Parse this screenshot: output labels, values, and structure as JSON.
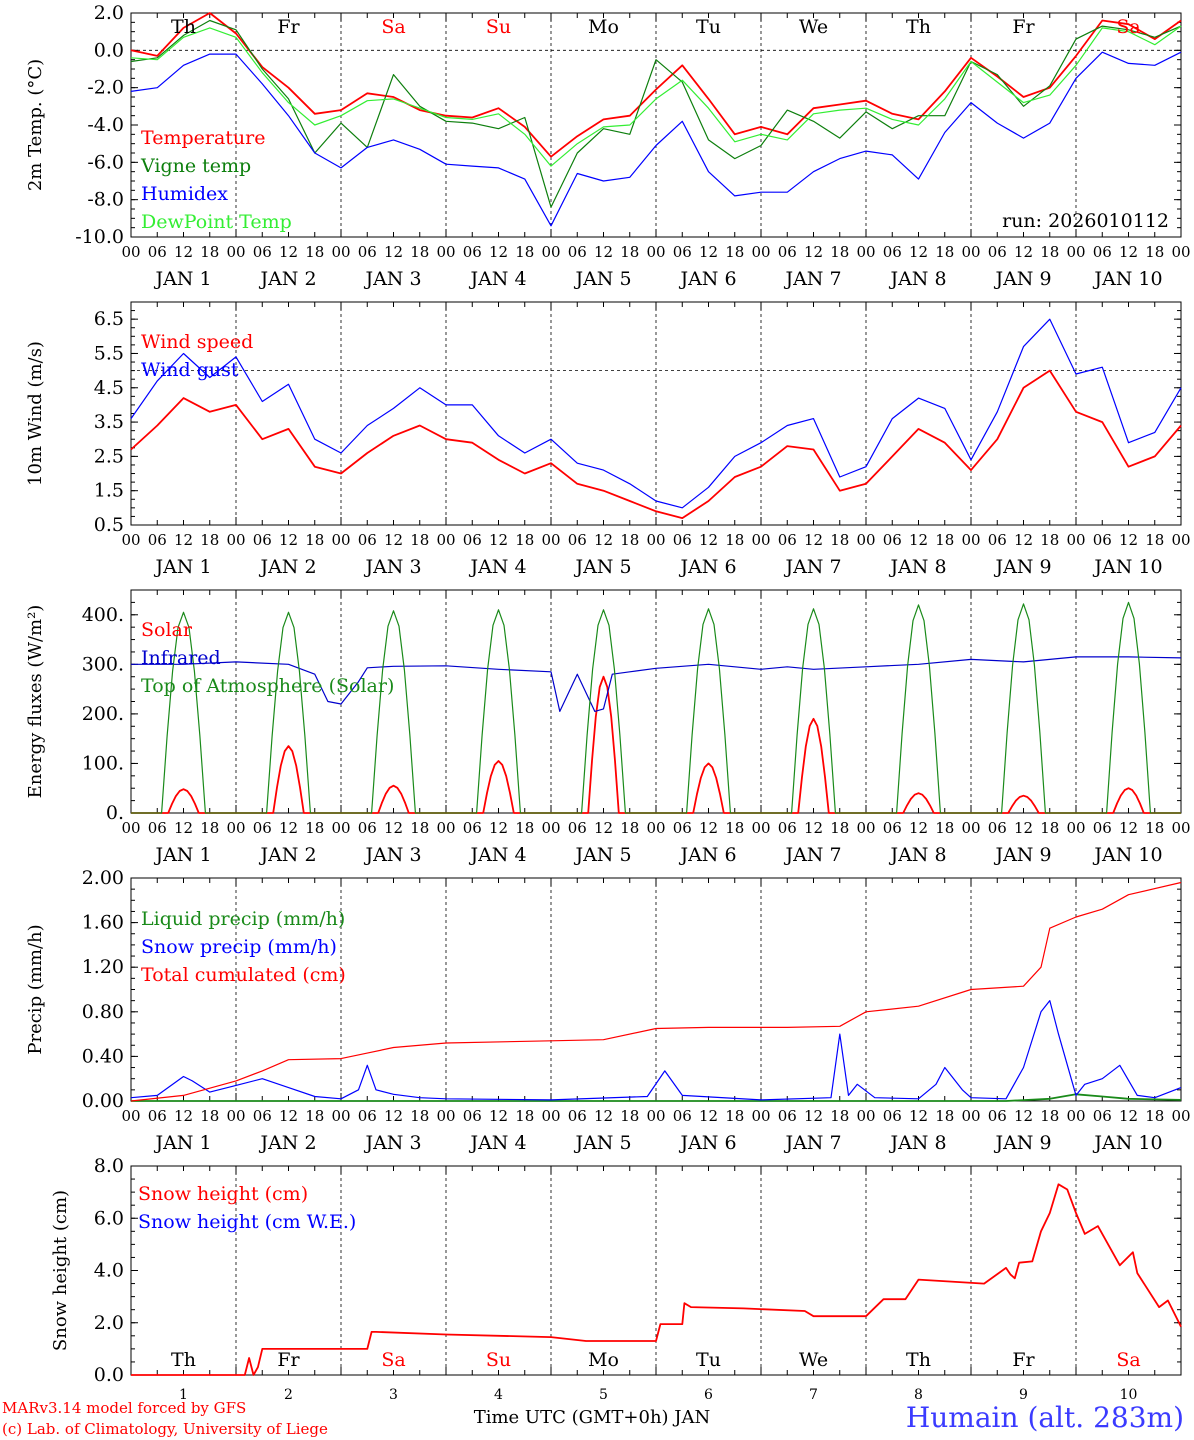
{
  "chart_data": [
    {
      "type": "line",
      "ylabel": "2m Temp. (°C)",
      "ylim": [
        -10,
        2
      ],
      "yticks": [
        "2.0",
        "0.0",
        "-2.0",
        "-4.0",
        "-6.0",
        "-8.0",
        "-10.0"
      ],
      "refline": 0,
      "day_names": [
        "Th",
        "Fr",
        "Sa",
        "Su",
        "Mo",
        "Tu",
        "We",
        "Th",
        "Fr",
        "Sa"
      ],
      "run_label": "run: 2026010112",
      "series": [
        {
          "name": "Temperature",
          "color": "#ff0000",
          "x": [
            0,
            6,
            12,
            18,
            24,
            30,
            36,
            42,
            48,
            54,
            60,
            66,
            72,
            78,
            84,
            90,
            96,
            102,
            108,
            114,
            120,
            126,
            132,
            138,
            144,
            150,
            156,
            162,
            168,
            174,
            180,
            186,
            192,
            198,
            204,
            210,
            216,
            222,
            228,
            234,
            240
          ],
          "values": [
            0,
            -0.3,
            1.2,
            2.0,
            0.9,
            -0.9,
            -2.0,
            -3.4,
            -3.2,
            -2.3,
            -2.5,
            -3.2,
            -3.5,
            -3.6,
            -3.1,
            -4.1,
            -5.7,
            -4.6,
            -3.7,
            -3.5,
            -2.1,
            -0.8,
            -2.6,
            -4.5,
            -4.1,
            -4.5,
            -3.1,
            -2.9,
            -2.7,
            -3.4,
            -3.7,
            -2.2,
            -0.4,
            -1.4,
            -2.5,
            -2.0,
            -0.3,
            1.6,
            1.4,
            0.6,
            1.6
          ]
        },
        {
          "name": "Vigne temp",
          "color": "#0d7f0d",
          "x": [
            0,
            6,
            12,
            18,
            24,
            30,
            36,
            42,
            48,
            54,
            60,
            66,
            72,
            78,
            84,
            90,
            96,
            102,
            108,
            114,
            120,
            126,
            132,
            138,
            144,
            150,
            156,
            162,
            168,
            174,
            180,
            186,
            192,
            198,
            204,
            210,
            216,
            222,
            228,
            234,
            240
          ],
          "values": [
            -0.6,
            -0.4,
            0.8,
            1.6,
            1.1,
            -1.0,
            -2.6,
            -5.5,
            -3.9,
            -5.2,
            -1.3,
            -3.0,
            -3.8,
            -3.9,
            -4.2,
            -3.6,
            -8.4,
            -5.5,
            -4.2,
            -4.5,
            -0.5,
            -1.7,
            -4.8,
            -5.8,
            -5.1,
            -3.2,
            -3.8,
            -4.7,
            -3.3,
            -4.2,
            -3.5,
            -3.5,
            -0.6,
            -1.3,
            -3.0,
            -1.9,
            0.6,
            1.3,
            1.1,
            0.7,
            1.3
          ]
        },
        {
          "name": "Humidex",
          "color": "#0000ff",
          "x": [
            0,
            6,
            12,
            18,
            24,
            30,
            36,
            42,
            48,
            54,
            60,
            66,
            72,
            78,
            84,
            90,
            96,
            102,
            108,
            114,
            120,
            126,
            132,
            138,
            144,
            150,
            156,
            162,
            168,
            174,
            180,
            186,
            192,
            198,
            204,
            210,
            216,
            222,
            228,
            234,
            240
          ],
          "values": [
            -2.2,
            -2.0,
            -0.8,
            -0.2,
            -0.2,
            -1.8,
            -3.5,
            -5.5,
            -6.3,
            -5.2,
            -4.8,
            -5.3,
            -6.1,
            -6.2,
            -6.3,
            -6.9,
            -9.4,
            -6.6,
            -7.0,
            -6.8,
            -5.1,
            -3.8,
            -6.5,
            -7.8,
            -7.6,
            -7.6,
            -6.5,
            -5.8,
            -5.4,
            -5.6,
            -6.9,
            -4.4,
            -2.8,
            -3.9,
            -4.7,
            -3.9,
            -1.5,
            -0.1,
            -0.7,
            -0.8,
            -0.1
          ]
        },
        {
          "name": "DewPoint Temp",
          "color": "#33ee33",
          "x": [
            0,
            6,
            12,
            18,
            24,
            30,
            36,
            42,
            48,
            54,
            60,
            66,
            72,
            78,
            84,
            90,
            96,
            102,
            108,
            114,
            120,
            126,
            132,
            138,
            144,
            150,
            156,
            162,
            168,
            174,
            180,
            186,
            192,
            198,
            204,
            210,
            216,
            222,
            228,
            234,
            240
          ],
          "values": [
            -0.4,
            -0.5,
            0.7,
            1.2,
            0.7,
            -1.2,
            -2.8,
            -4.0,
            -3.5,
            -2.7,
            -2.6,
            -3.1,
            -3.6,
            -3.7,
            -3.4,
            -4.5,
            -6.2,
            -5.0,
            -4.1,
            -4.0,
            -2.6,
            -1.6,
            -3.1,
            -4.9,
            -4.5,
            -4.8,
            -3.4,
            -3.2,
            -3.1,
            -3.7,
            -4.0,
            -2.6,
            -0.6,
            -1.7,
            -2.8,
            -2.4,
            -0.8,
            1.2,
            1.0,
            0.3,
            1.3
          ]
        }
      ]
    },
    {
      "type": "line",
      "ylabel": "10m Wind (m/s)",
      "ylim": [
        0.5,
        7.0
      ],
      "yticks": [
        "6.5",
        "5.5",
        "4.5",
        "3.5",
        "2.5",
        "1.5",
        "0.5"
      ],
      "refline": 5,
      "series": [
        {
          "name": "Wind speed",
          "color": "#ff0000",
          "x": [
            0,
            6,
            12,
            18,
            24,
            30,
            36,
            42,
            48,
            54,
            60,
            66,
            72,
            78,
            84,
            90,
            96,
            102,
            108,
            114,
            120,
            126,
            132,
            138,
            144,
            150,
            156,
            162,
            168,
            174,
            180,
            186,
            192,
            198,
            204,
            210,
            216,
            222,
            228,
            234,
            240
          ],
          "values": [
            2.7,
            3.4,
            4.2,
            3.8,
            4.0,
            3.0,
            3.3,
            2.2,
            2.0,
            2.6,
            3.1,
            3.4,
            3.0,
            2.9,
            2.4,
            2.0,
            2.3,
            1.7,
            1.5,
            1.2,
            0.9,
            0.7,
            1.2,
            1.9,
            2.2,
            2.8,
            2.7,
            1.5,
            1.7,
            2.5,
            3.3,
            2.9,
            2.1,
            3.0,
            4.5,
            5.0,
            3.8,
            3.5,
            2.2,
            2.5,
            3.4
          ]
        },
        {
          "name": "Wind gust",
          "color": "#0000ff",
          "x": [
            0,
            6,
            12,
            18,
            24,
            30,
            36,
            42,
            48,
            54,
            60,
            66,
            72,
            78,
            84,
            90,
            96,
            102,
            108,
            114,
            120,
            126,
            132,
            138,
            144,
            150,
            156,
            162,
            168,
            174,
            180,
            186,
            192,
            198,
            204,
            210,
            216,
            222,
            228,
            234,
            240
          ],
          "values": [
            3.6,
            4.7,
            5.5,
            4.8,
            5.4,
            4.1,
            4.6,
            3.0,
            2.6,
            3.4,
            3.9,
            4.5,
            4.0,
            4.0,
            3.1,
            2.6,
            3.0,
            2.3,
            2.1,
            1.7,
            1.2,
            1.0,
            1.6,
            2.5,
            2.9,
            3.4,
            3.6,
            1.9,
            2.2,
            3.6,
            4.2,
            3.9,
            2.4,
            3.8,
            5.7,
            6.5,
            4.9,
            5.1,
            2.9,
            3.2,
            4.5
          ]
        }
      ]
    },
    {
      "type": "line",
      "ylabel": "Energy fluxes (W/m²)",
      "ylim": [
        0,
        450
      ],
      "yticks": [
        "400.",
        "300.",
        "200.",
        "100.",
        "0."
      ],
      "series": [
        {
          "name": "Solar",
          "color": "#ff0000",
          "daily_peaks": [
            48,
            135,
            55,
            105,
            275,
            100,
            190,
            40,
            35,
            50
          ]
        },
        {
          "name": "Infrared",
          "color": "#0000cc",
          "x": [
            0,
            12,
            24,
            36,
            42,
            45,
            48,
            52,
            54,
            60,
            72,
            84,
            96,
            98,
            102,
            106,
            108,
            110,
            114,
            120,
            132,
            144,
            150,
            156,
            168,
            180,
            192,
            204,
            216,
            228,
            240
          ],
          "values": [
            300,
            300,
            305,
            300,
            280,
            225,
            220,
            265,
            293,
            296,
            297,
            290,
            285,
            205,
            280,
            205,
            210,
            280,
            285,
            292,
            300,
            290,
            295,
            290,
            295,
            300,
            310,
            305,
            315,
            315,
            313
          ]
        },
        {
          "name": "Top of Atmosphere (Solar)",
          "color": "#1a8a1a",
          "daily_peaks": [
            405,
            405,
            408,
            410,
            410,
            412,
            412,
            420,
            422,
            425
          ]
        }
      ]
    },
    {
      "type": "line",
      "ylabel": "Precip (mm/h)",
      "ylim": [
        0,
        2.0
      ],
      "yticks": [
        "2.00",
        "1.60",
        "1.20",
        "0.80",
        "0.40",
        "0.00"
      ],
      "series": [
        {
          "name": "Liquid precip (mm/h)",
          "color": "#1a8a1a",
          "x": [
            0,
            48,
            96,
            144,
            200,
            210,
            216,
            222,
            228,
            240
          ],
          "values": [
            0,
            0,
            0,
            0,
            0,
            0.02,
            0.06,
            0.04,
            0.02,
            0.01
          ]
        },
        {
          "name": "Snow precip (mm/h)",
          "color": "#0000ff",
          "x": [
            0,
            6,
            12,
            14,
            18,
            24,
            30,
            36,
            42,
            48,
            52,
            54,
            56,
            60,
            66,
            72,
            96,
            118,
            122,
            126,
            144,
            160,
            162,
            164,
            166,
            170,
            180,
            184,
            186,
            190,
            192,
            200,
            204,
            208,
            210,
            212,
            216,
            218,
            222,
            226,
            230,
            234,
            240
          ],
          "values": [
            0.03,
            0.05,
            0.22,
            0.18,
            0.08,
            0.14,
            0.2,
            0.12,
            0.04,
            0.02,
            0.1,
            0.32,
            0.1,
            0.06,
            0.03,
            0.02,
            0.01,
            0.04,
            0.27,
            0.05,
            0.01,
            0.03,
            0.6,
            0.05,
            0.15,
            0.03,
            0.02,
            0.15,
            0.3,
            0.1,
            0.03,
            0.02,
            0.3,
            0.8,
            0.9,
            0.6,
            0.05,
            0.15,
            0.2,
            0.32,
            0.05,
            0.03,
            0.12
          ]
        },
        {
          "name": "Total cumulated (cm)",
          "color": "#ff0000",
          "x": [
            0,
            12,
            24,
            30,
            36,
            48,
            54,
            60,
            72,
            96,
            108,
            120,
            132,
            150,
            162,
            168,
            180,
            192,
            204,
            208,
            210,
            216,
            222,
            228,
            240
          ],
          "values": [
            0,
            0.05,
            0.18,
            0.27,
            0.37,
            0.38,
            0.43,
            0.48,
            0.52,
            0.54,
            0.55,
            0.65,
            0.66,
            0.66,
            0.67,
            0.8,
            0.85,
            1.0,
            1.03,
            1.2,
            1.55,
            1.65,
            1.72,
            1.85,
            1.96
          ]
        }
      ]
    },
    {
      "type": "line",
      "ylabel": "Snow height (cm)",
      "ylim": [
        0,
        8
      ],
      "yticks": [
        "8.0",
        "6.0",
        "4.0",
        "2.0",
        "0.0"
      ],
      "day_names": [
        "Th",
        "Fr",
        "Sa",
        "Su",
        "Mo",
        "Tu",
        "We",
        "Th",
        "Fr",
        "Sa"
      ],
      "day_numbers": [
        "1",
        "2",
        "3",
        "4",
        "5",
        "6",
        "7",
        "8",
        "9",
        "10"
      ],
      "xlabel": "Time UTC (GMT+0h) JAN",
      "series": [
        {
          "name": "Snow height (cm)",
          "color": "#ff0000",
          "x": [
            0,
            26,
            27,
            28,
            29,
            30,
            36,
            54,
            55,
            56,
            72,
            96,
            104,
            120,
            121,
            126,
            126.5,
            128,
            140,
            154,
            156,
            168,
            172,
            177,
            180,
            195,
            200,
            201,
            202,
            203,
            206,
            208,
            210,
            212,
            214,
            216,
            218,
            221,
            226,
            229,
            230,
            235,
            237,
            240
          ],
          "values": [
            0,
            0,
            0.65,
            0,
            0.3,
            1.0,
            1.0,
            1.0,
            1.65,
            1.65,
            1.55,
            1.45,
            1.3,
            1.3,
            1.95,
            1.95,
            2.75,
            2.6,
            2.55,
            2.45,
            2.25,
            2.25,
            2.9,
            2.9,
            3.65,
            3.5,
            4.1,
            3.85,
            3.7,
            4.3,
            4.35,
            5.5,
            6.2,
            7.3,
            7.1,
            6.2,
            5.4,
            5.7,
            4.2,
            4.7,
            3.9,
            2.6,
            2.85,
            1.85
          ]
        },
        {
          "name": "Snow height (cm W.E.)",
          "color": "#0000ff",
          "x": [],
          "values": []
        }
      ]
    }
  ],
  "x_axis": {
    "hour_labels": [
      "00",
      "06",
      "12",
      "18"
    ],
    "date_labels": [
      "JAN  1",
      "JAN  2",
      "JAN  3",
      "JAN  4",
      "JAN  5",
      "JAN  6",
      "JAN  7",
      "JAN  8",
      "JAN  9",
      "JAN 10"
    ]
  },
  "footer": {
    "credit_line1": "MARv3.14 model forced by GFS",
    "credit_line2": "(c) Lab. of Climatology, University of Liege",
    "station": "Humain (alt. 283m)"
  }
}
